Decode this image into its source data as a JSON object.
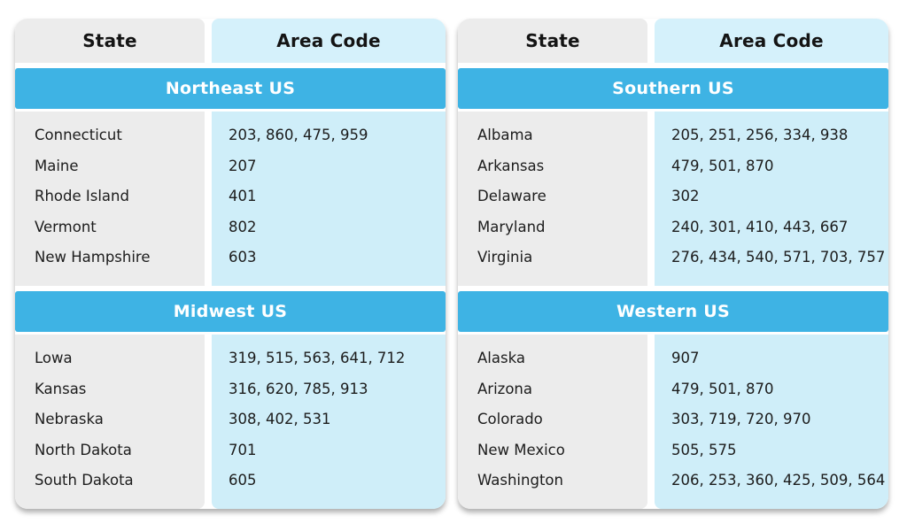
{
  "colors": {
    "section_bar": "#3EB3E4",
    "area_header_bg": "#D5F1FB",
    "area_body_bg": "#CFEEF9",
    "state_bg": "#ECECEC"
  },
  "tables": [
    {
      "columns": {
        "state": "State",
        "area": "Area Code"
      },
      "sections": [
        {
          "title": "Northeast US",
          "rows": [
            {
              "state": "Connecticut",
              "codes": "203, 860, 475, 959"
            },
            {
              "state": "Maine",
              "codes": "207"
            },
            {
              "state": "Rhode Island",
              "codes": "401"
            },
            {
              "state": "Vermont",
              "codes": "802"
            },
            {
              "state": "New Hampshire",
              "codes": "603"
            }
          ]
        },
        {
          "title": "Midwest US",
          "rows": [
            {
              "state": "Lowa",
              "codes": "319, 515, 563, 641, 712"
            },
            {
              "state": "Kansas",
              "codes": "316, 620, 785, 913"
            },
            {
              "state": "Nebraska",
              "codes": "308, 402, 531"
            },
            {
              "state": "North Dakota",
              "codes": "701"
            },
            {
              "state": "South Dakota",
              "codes": "605"
            }
          ]
        }
      ]
    },
    {
      "columns": {
        "state": "State",
        "area": "Area Code"
      },
      "sections": [
        {
          "title": "Southern US",
          "rows": [
            {
              "state": "Albama",
              "codes": "205, 251, 256, 334, 938"
            },
            {
              "state": "Arkansas",
              "codes": "479, 501, 870"
            },
            {
              "state": "Delaware",
              "codes": "302"
            },
            {
              "state": "Maryland",
              "codes": "240, 301, 410, 443, 667"
            },
            {
              "state": "Virginia",
              "codes": "276, 434, 540, 571, 703, 757"
            }
          ]
        },
        {
          "title": "Western US",
          "rows": [
            {
              "state": "Alaska",
              "codes": "907"
            },
            {
              "state": "Arizona",
              "codes": "479, 501, 870"
            },
            {
              "state": "Colorado",
              "codes": "303, 719, 720, 970"
            },
            {
              "state": "New Mexico",
              "codes": "505, 575"
            },
            {
              "state": "Washington",
              "codes": "206, 253, 360, 425, 509, 564"
            }
          ]
        }
      ]
    }
  ]
}
